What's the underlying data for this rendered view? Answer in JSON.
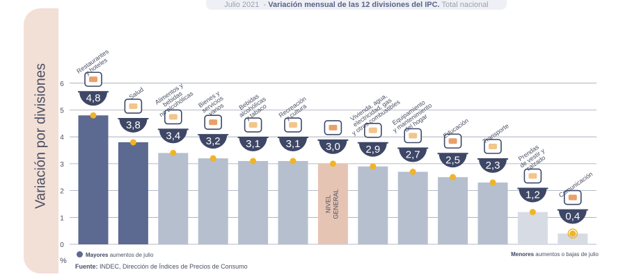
{
  "header": {
    "date": "Julio 2021",
    "title": "Variación mensual de las 12 divisiones del IPC.",
    "subtitle": "Total nacional"
  },
  "colors": {
    "mayor": "#5c6a91",
    "normal": "#b6bfce",
    "general": "#e6c4b4",
    "menor": "#d7dbe3",
    "dot": "#f0b429",
    "badge": "#3e4766"
  },
  "chart_data": {
    "type": "bar",
    "ylabel": "Variación por divisiones",
    "ylim": [
      0,
      6
    ],
    "yticks": [
      "0",
      "1",
      "2",
      "3",
      "4",
      "5",
      "6"
    ],
    "grid": true,
    "categories": [
      "Restaurantes y hoteles",
      "Salud",
      "Alimentos y bebidas no alcohólicas",
      "Bienes y servicios varios",
      "Bebidas alcohólicas y tabaco",
      "Recreación y cultura",
      "Nivel general",
      "Vivienda, agua, electricidad, gas y otros combustibles",
      "Equipamiento y mantenimiento del hogar",
      "Educación",
      "Transporte",
      "Prendas de vestir y calzado",
      "Comunicación"
    ],
    "label_lines": [
      [
        "Restaurantes",
        "y hoteles"
      ],
      [
        "Salud"
      ],
      [
        "Alimentos y",
        "bebidas",
        "no alcohólicas"
      ],
      [
        "Bienes y",
        "servicios",
        "varios"
      ],
      [
        "Bebidas",
        "alcohólicas",
        "y tabaco"
      ],
      [
        "Recreación",
        "y cultura"
      ],
      [
        "NIVEL",
        "GENERAL"
      ],
      [
        "Vivienda, agua,",
        "electricidad, gas",
        "y otros combustibles"
      ],
      [
        "Equipamiento",
        "y mantenimiento",
        "del hogar"
      ],
      [
        "Educación"
      ],
      [
        "Transporte"
      ],
      [
        "Prendas",
        "de vestir y",
        "calzado"
      ],
      [
        "Comunicación"
      ]
    ],
    "values": [
      4.8,
      3.8,
      3.4,
      3.2,
      3.1,
      3.1,
      3.0,
      2.9,
      2.7,
      2.5,
      2.3,
      1.2,
      0.4
    ],
    "value_labels": [
      "4,8",
      "3,8",
      "3,4",
      "3,2",
      "3,1",
      "3,1",
      "3,0",
      "2,9",
      "2,7",
      "2,5",
      "2,3",
      "1,2",
      "0,4"
    ],
    "groups": [
      "mayor",
      "mayor",
      "normal",
      "normal",
      "normal",
      "normal",
      "general",
      "normal",
      "normal",
      "normal",
      "normal",
      "menor",
      "menor"
    ],
    "icons": [
      "cutlery-icon",
      "first-aid-icon",
      "chicken-icon",
      "comb-scissors-icon",
      "bottle-glass-icon",
      "tv-umbrella-icon",
      "basket-icon",
      "lightbulb-faucet-icon",
      "washing-machine-icon",
      "book-icon",
      "car-icon",
      "shirt-icon",
      "smartphone-icon"
    ]
  },
  "legend": {
    "mayores_bold": "Mayores",
    "mayores_rest": "aumentos de julio",
    "menores_bold": "Menores",
    "menores_rest": "aumentos o bajas de julio"
  },
  "unit": "%",
  "source": {
    "label": "Fuente:",
    "text": "INDEC, Dirección de Índices de Precios de Consumo"
  }
}
